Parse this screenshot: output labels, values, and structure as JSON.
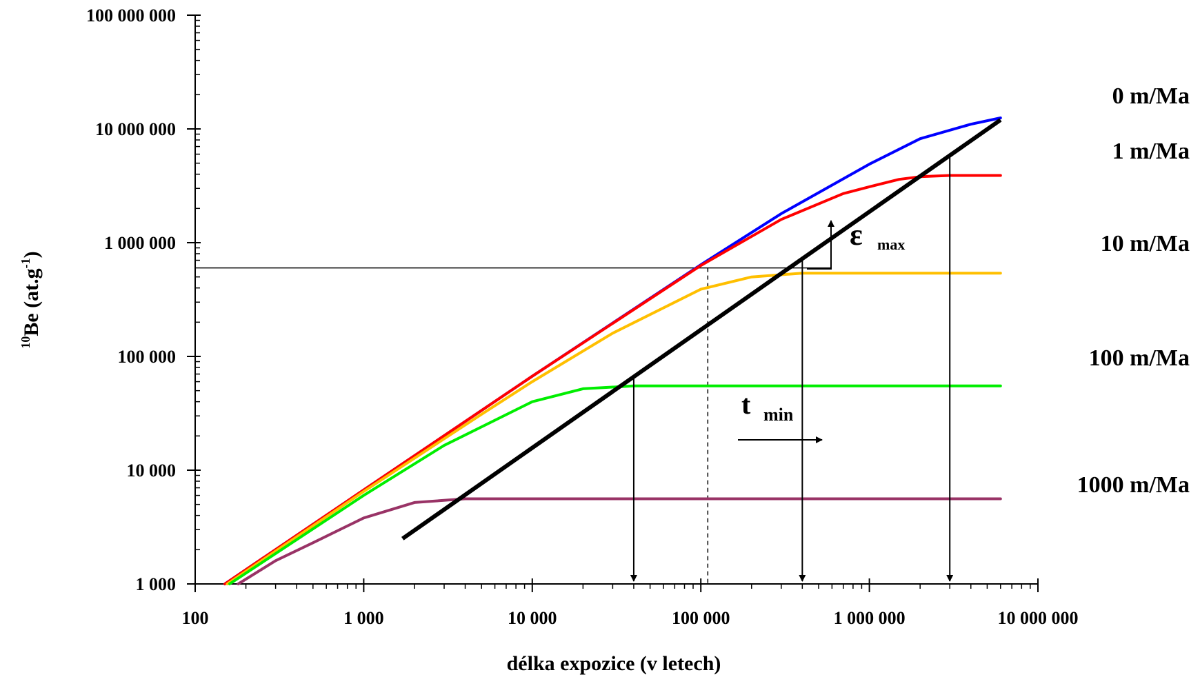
{
  "chart_data": {
    "type": "line",
    "title": "",
    "x_scale": "log",
    "y_scale": "log",
    "xlim": [
      100,
      10000000
    ],
    "ylim": [
      1000,
      100000000
    ],
    "xlabel": "délka expozice (v letech)",
    "ylabel": {
      "sup": "10",
      "main": "Be (at.g",
      "sup2": "-1",
      "close": ")"
    },
    "x_ticks": [
      {
        "value": 100,
        "label": "100"
      },
      {
        "value": 1000,
        "label": "1 000"
      },
      {
        "value": 10000,
        "label": "10 000"
      },
      {
        "value": 100000,
        "label": "100 000"
      },
      {
        "value": 1000000,
        "label": "1 000 000"
      },
      {
        "value": 10000000,
        "label": "10 000 000"
      }
    ],
    "y_ticks": [
      {
        "value": 1000,
        "label": "1 000"
      },
      {
        "value": 10000,
        "label": "10 000"
      },
      {
        "value": 100000,
        "label": "100 000"
      },
      {
        "value": 1000000,
        "label": "1 000 000"
      },
      {
        "value": 10000000,
        "label": "10 000 000"
      },
      {
        "value": 100000000,
        "label": "100 000 000"
      }
    ],
    "grid": false,
    "series": [
      {
        "name": "0 m/Ma",
        "color": "#0000ff",
        "x": [
          150,
          1000,
          10000,
          100000,
          300000,
          1000000,
          2000000,
          4000000,
          6000000
        ],
        "y": [
          1000,
          6700,
          67000,
          640000,
          1800000,
          4900000,
          8200000,
          11000000,
          12500000
        ]
      },
      {
        "name": "1 m/Ma",
        "color": "#ff0000",
        "x": [
          150,
          1000,
          10000,
          100000,
          300000,
          700000,
          1000000,
          1500000,
          2000000,
          3000000,
          6000000
        ],
        "y": [
          1000,
          6700,
          67000,
          630000,
          1600000,
          2700000,
          3100000,
          3600000,
          3800000,
          3900000,
          3900000
        ]
      },
      {
        "name": "10 m/Ma",
        "color": "#ffbf00",
        "x": [
          155,
          1000,
          5000,
          10000,
          30000,
          100000,
          200000,
          400000,
          1000000,
          6000000
        ],
        "y": [
          1000,
          6500,
          31000,
          60000,
          160000,
          390000,
          500000,
          540000,
          540000,
          540000
        ]
      },
      {
        "name": "100 m/Ma",
        "color": "#00ee00",
        "x": [
          160,
          1000,
          3000,
          10000,
          20000,
          40000,
          100000,
          6000000
        ],
        "y": [
          1000,
          6000,
          16500,
          40000,
          52000,
          55000,
          55000,
          55000
        ]
      },
      {
        "name": "1000 m/Ma",
        "color": "#993366",
        "x": [
          180,
          300,
          500,
          1000,
          2000,
          4000,
          6000000
        ],
        "y": [
          1000,
          1600,
          2300,
          3800,
          5200,
          5600,
          5600
        ]
      }
    ],
    "steady_state_line": {
      "x": [
        1700,
        6000000
      ],
      "y": [
        2500,
        12000000
      ],
      "color": "#000000"
    },
    "measured_concentration": 600000,
    "dashed_x": 110000,
    "arrows_down_x": [
      40000,
      400000,
      3000000
    ],
    "annotations": {
      "epsilon_symbol": "ε",
      "epsilon_sub": "max",
      "t_symbol": "t",
      "t_sub": "min"
    }
  }
}
